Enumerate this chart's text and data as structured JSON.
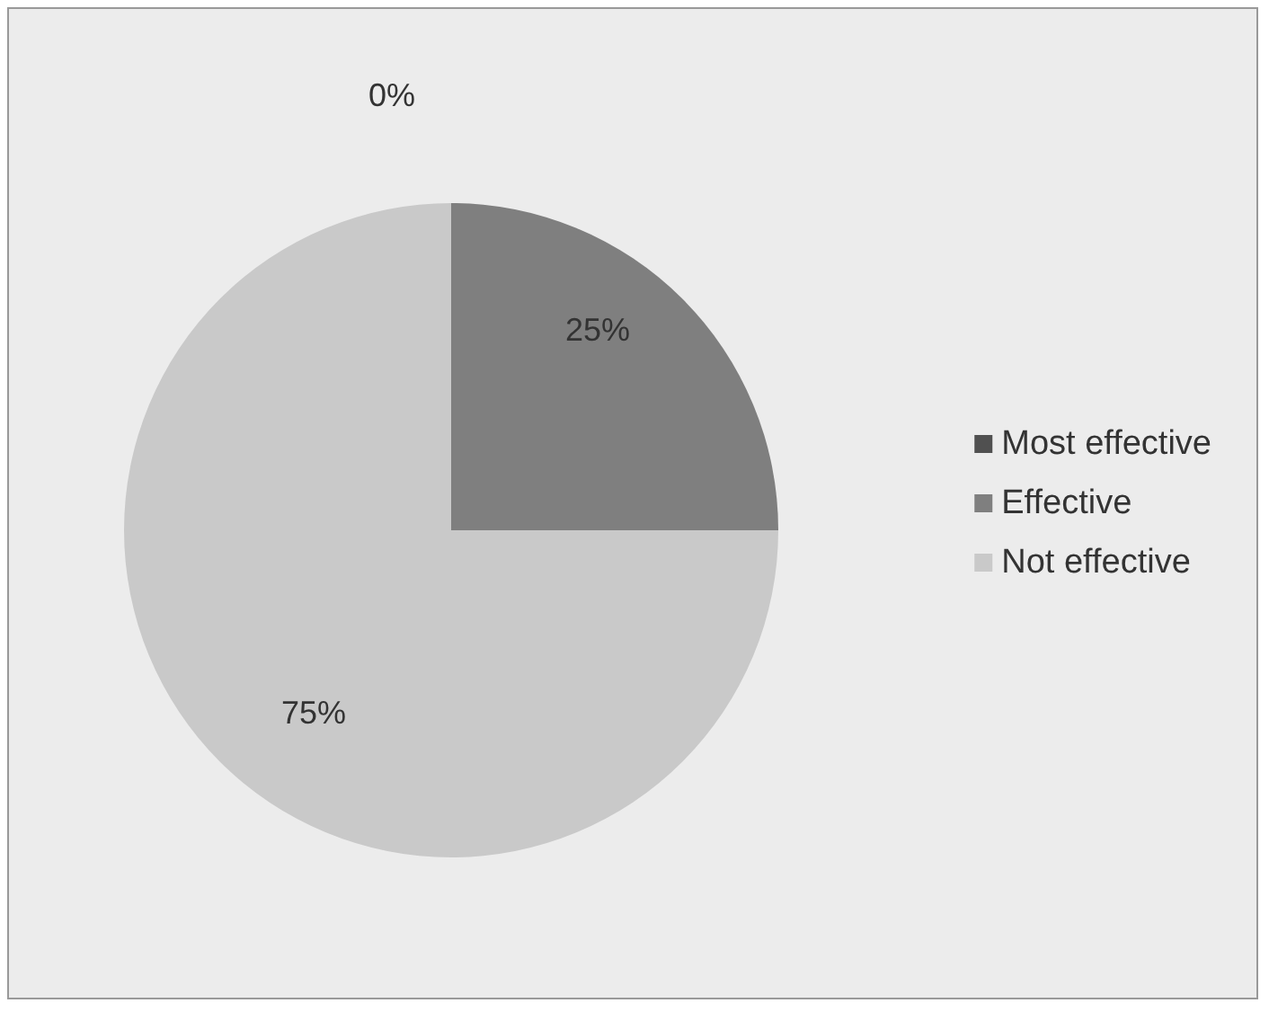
{
  "chart_data": {
    "type": "pie",
    "categories": [
      "Most effective",
      "Effective",
      "Not effective"
    ],
    "values": [
      0,
      25,
      75
    ],
    "colors": [
      "#505050",
      "#7f7f7f",
      "#c9c9c9"
    ],
    "value_labels": [
      "0%",
      "25%",
      "75%"
    ],
    "legend": "right"
  }
}
